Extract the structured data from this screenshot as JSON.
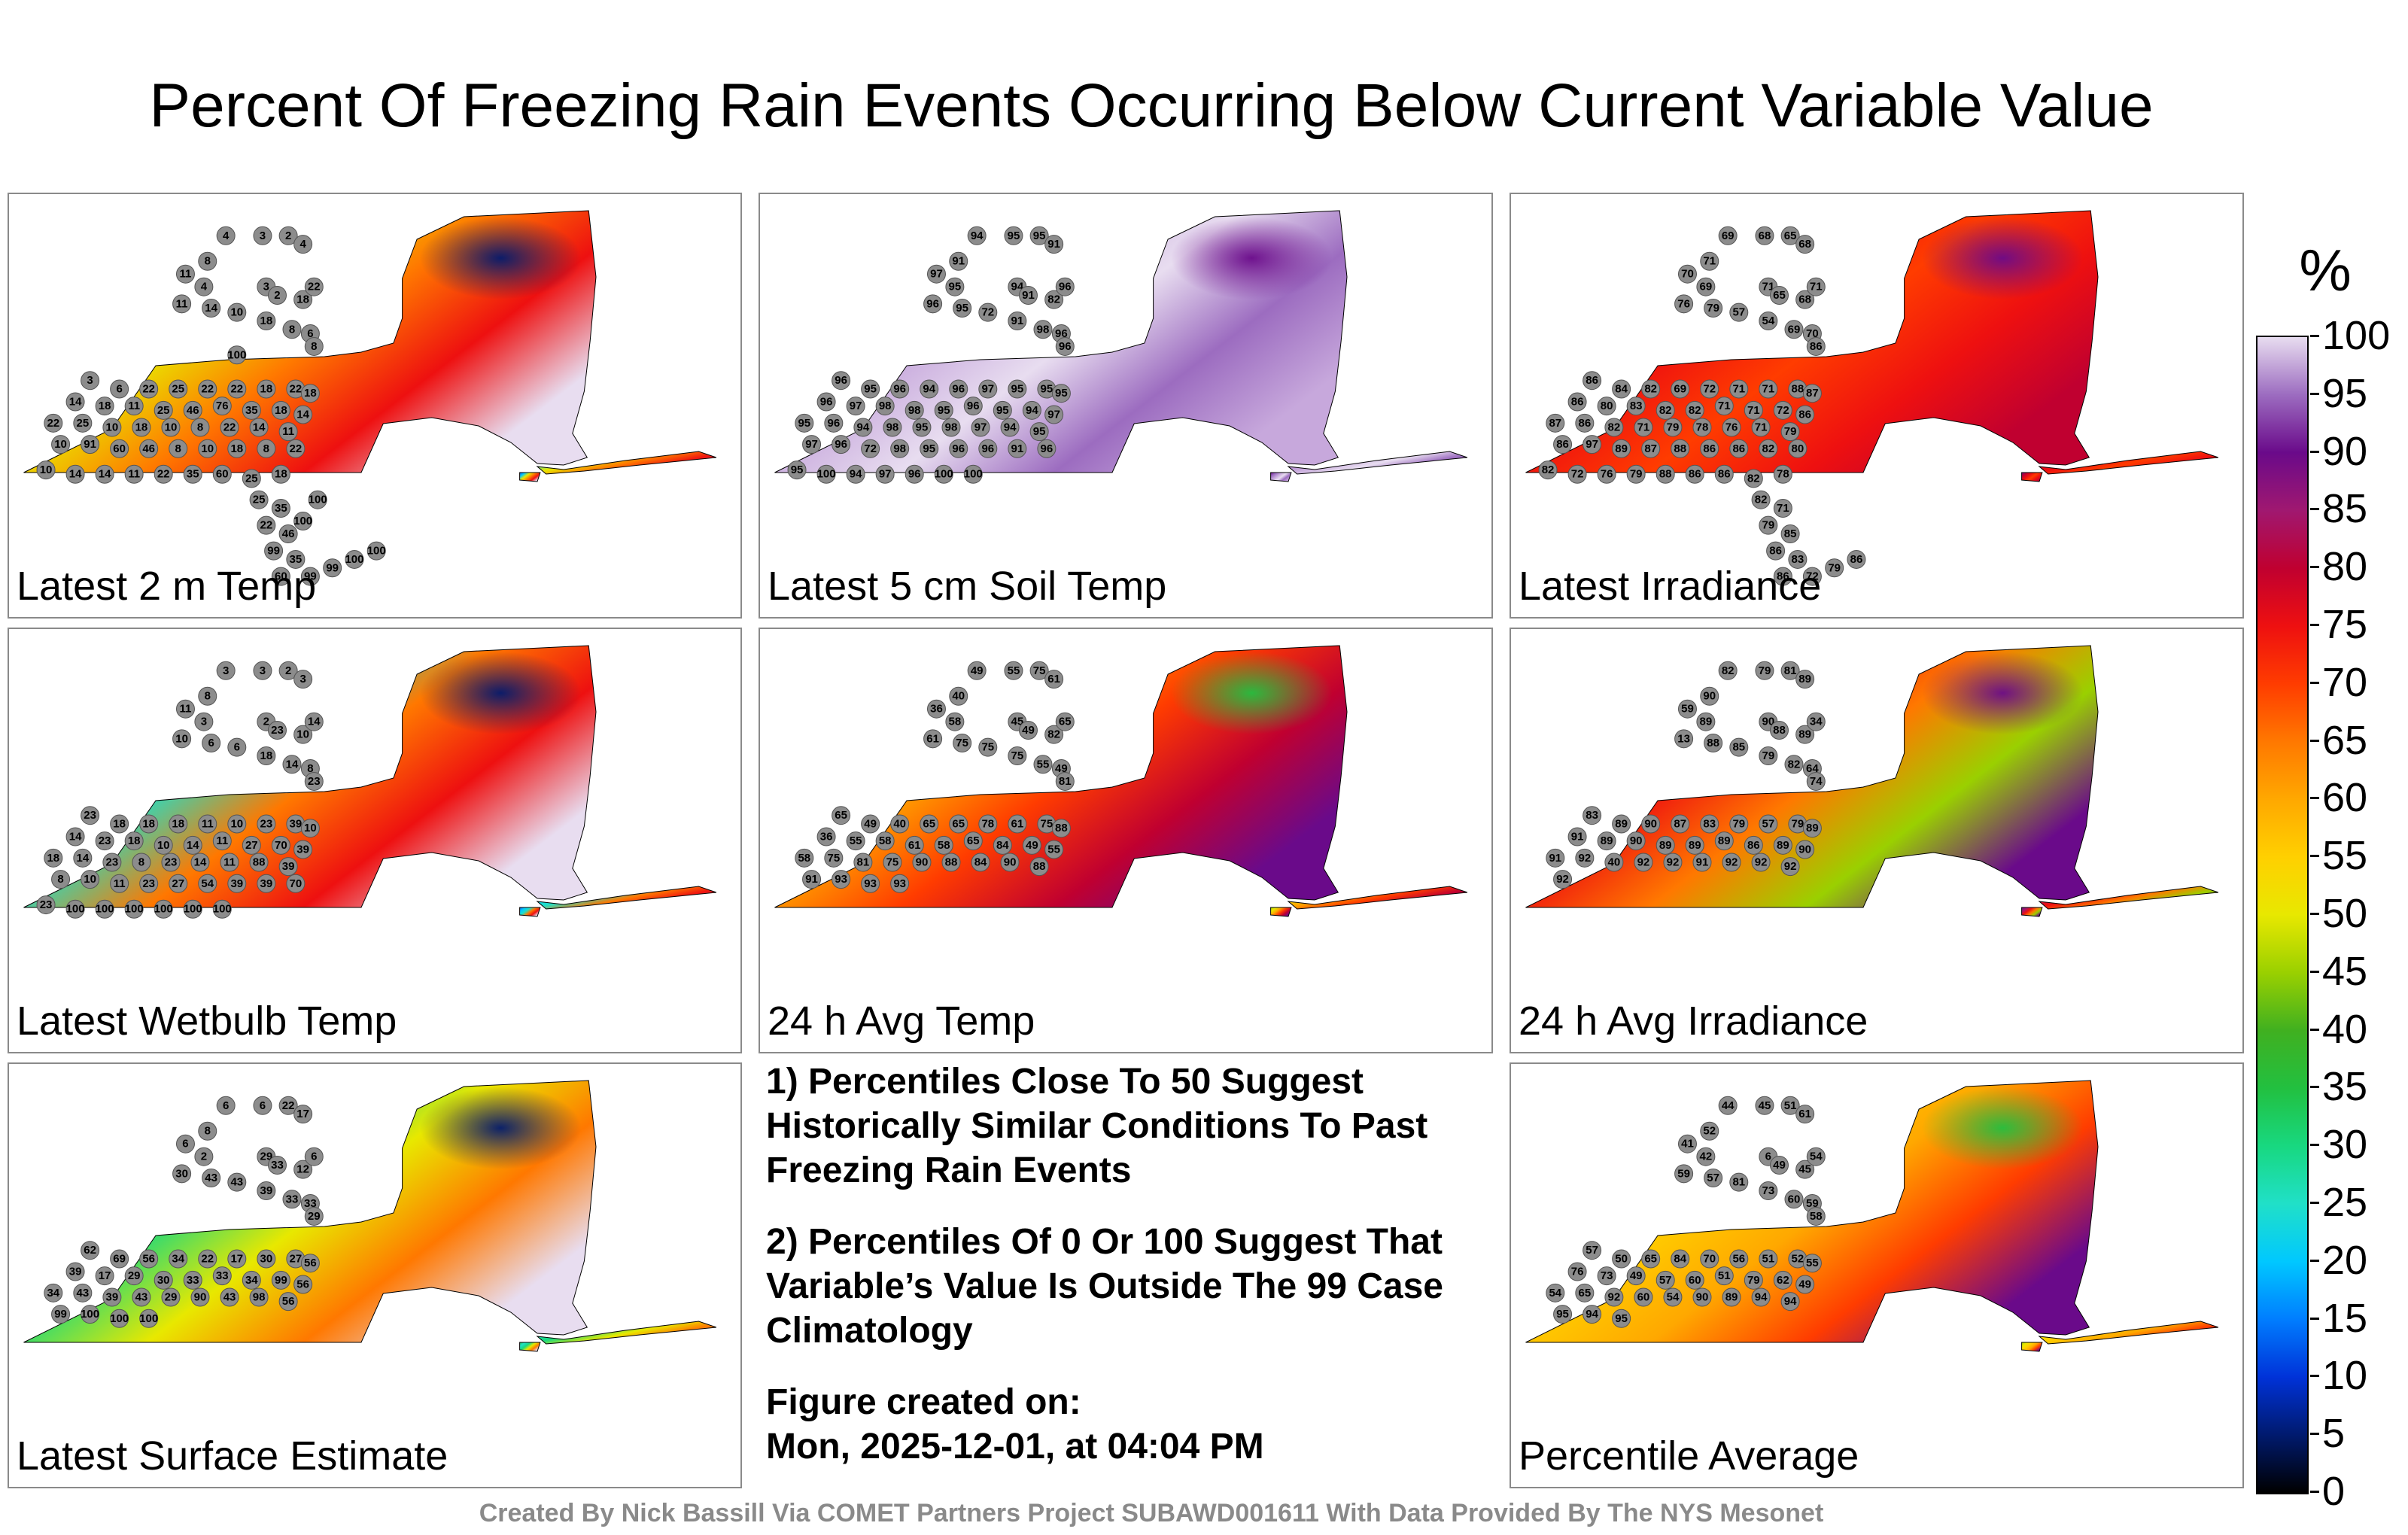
{
  "title": "Percent Of Freezing Rain Events Occurring Below Current Variable Value",
  "panels": [
    {
      "label": "Latest 2 m Temp",
      "colors": [
        "#1450e0",
        "#00c8ff",
        "#e8e800",
        "#ff7800",
        "#ee1010",
        "#e8ddf0"
      ],
      "dark": "#001a6e",
      "values": [
        "4",
        "3",
        "2",
        "4",
        "8",
        "11",
        "4",
        "3",
        "2",
        "18",
        "22",
        "11",
        "14",
        "10",
        "18",
        "8",
        "6",
        "8",
        "3",
        "6",
        "22",
        "25",
        "22",
        "22",
        "18",
        "22",
        "18",
        "14",
        "18",
        "11",
        "25",
        "46",
        "76",
        "35",
        "18",
        "14",
        "22",
        "25",
        "10",
        "18",
        "10",
        "8",
        "22",
        "14",
        "11",
        "10",
        "91",
        "60",
        "46",
        "8",
        "10",
        "18",
        "8",
        "22",
        "10",
        "14",
        "14",
        "11",
        "22",
        "35",
        "60",
        "25",
        "18",
        "25",
        "35",
        "22",
        "46",
        "99",
        "35",
        "60",
        "99",
        "99",
        "100",
        "100",
        "100",
        "100",
        "100"
      ]
    },
    {
      "label": "Latest 5 cm Soil Temp",
      "colors": [
        "#6a0a8a",
        "#9c6cc0",
        "#c7a8dc",
        "#e8ddf0",
        "#9c6cc0",
        "#c7a8dc"
      ],
      "dark": "#6a0a8a",
      "values": [
        "94",
        "95",
        "95",
        "91",
        "91",
        "97",
        "95",
        "94",
        "91",
        "82",
        "96",
        "96",
        "95",
        "72",
        "91",
        "98",
        "96",
        "96",
        "96",
        "95",
        "96",
        "94",
        "96",
        "97",
        "95",
        "95",
        "95",
        "96",
        "97",
        "98",
        "98",
        "95",
        "96",
        "95",
        "94",
        "97",
        "95",
        "96",
        "94",
        "98",
        "95",
        "98",
        "97",
        "94",
        "95",
        "97",
        "96",
        "72",
        "98",
        "95",
        "96",
        "96",
        "91",
        "96",
        "95",
        "100",
        "94",
        "97",
        "96",
        "100",
        "100"
      ]
    },
    {
      "label": "Latest Irradiance",
      "colors": [
        "#6a0a8a",
        "#c00030",
        "#ee1010",
        "#ff3c00",
        "#ee1010",
        "#c00030"
      ],
      "dark": "#6a0a8a",
      "values": [
        "69",
        "68",
        "65",
        "68",
        "71",
        "70",
        "69",
        "71",
        "65",
        "68",
        "71",
        "76",
        "79",
        "57",
        "54",
        "69",
        "70",
        "86",
        "86",
        "84",
        "82",
        "69",
        "72",
        "71",
        "71",
        "88",
        "87",
        "86",
        "80",
        "83",
        "82",
        "82",
        "71",
        "71",
        "72",
        "86",
        "87",
        "86",
        "82",
        "71",
        "79",
        "78",
        "76",
        "71",
        "79",
        "86",
        "97",
        "89",
        "87",
        "88",
        "86",
        "86",
        "82",
        "80",
        "82",
        "72",
        "76",
        "79",
        "88",
        "86",
        "86",
        "82",
        "78",
        "82",
        "71",
        "79",
        "85",
        "86",
        "83",
        "86",
        "72",
        "79",
        "86"
      ]
    },
    {
      "label": "Latest Wetbulb Temp",
      "colors": [
        "#1450e0",
        "#00c8ff",
        "#20e0c8",
        "#ff7800",
        "#ee1010",
        "#e8ddf0"
      ],
      "dark": "#001a6e",
      "values": [
        "3",
        "3",
        "2",
        "3",
        "8",
        "11",
        "3",
        "2",
        "23",
        "10",
        "14",
        "10",
        "6",
        "6",
        "18",
        "14",
        "8",
        "23",
        "23",
        "18",
        "18",
        "18",
        "11",
        "10",
        "23",
        "39",
        "10",
        "14",
        "23",
        "18",
        "10",
        "14",
        "11",
        "27",
        "70",
        "39",
        "18",
        "14",
        "23",
        "8",
        "23",
        "14",
        "11",
        "88",
        "39",
        "8",
        "10",
        "11",
        "23",
        "27",
        "54",
        "39",
        "39",
        "70",
        "23",
        "100",
        "100",
        "100",
        "100",
        "100",
        "100"
      ]
    },
    {
      "label": "24 h Avg Temp",
      "colors": [
        "#9ad000",
        "#e8e800",
        "#ffa800",
        "#ff3c00",
        "#c00030",
        "#6a0a8a"
      ],
      "dark": "#22c040",
      "values": [
        "49",
        "55",
        "75",
        "61",
        "40",
        "36",
        "58",
        "45",
        "49",
        "82",
        "65",
        "61",
        "75",
        "75",
        "75",
        "55",
        "49",
        "81",
        "65",
        "49",
        "40",
        "65",
        "65",
        "78",
        "61",
        "75",
        "88",
        "36",
        "55",
        "58",
        "61",
        "58",
        "65",
        "84",
        "49",
        "55",
        "58",
        "75",
        "81",
        "75",
        "90",
        "88",
        "84",
        "90",
        "88",
        "91",
        "93",
        "93",
        "93"
      ]
    },
    {
      "label": "24 h Avg Irradiance",
      "colors": [
        "#6a0a8a",
        "#a01870",
        "#ee1010",
        "#ff7800",
        "#9ad000",
        "#6a0a8a"
      ],
      "dark": "#6a0a8a",
      "values": [
        "82",
        "79",
        "81",
        "89",
        "90",
        "59",
        "89",
        "90",
        "88",
        "89",
        "34",
        "13",
        "88",
        "85",
        "79",
        "82",
        "64",
        "74",
        "83",
        "89",
        "90",
        "87",
        "83",
        "79",
        "57",
        "79",
        "89",
        "91",
        "89",
        "90",
        "89",
        "89",
        "89",
        "86",
        "89",
        "90",
        "91",
        "92",
        "40",
        "92",
        "92",
        "91",
        "92",
        "92",
        "92",
        "92"
      ]
    },
    {
      "label": "Latest Surface Estimate",
      "colors": [
        "#22c040",
        "#20e0c8",
        "#18d880",
        "#e8e800",
        "#ff7800",
        "#e8ddf0"
      ],
      "dark": "#001a6e",
      "values": [
        "6",
        "6",
        "22",
        "17",
        "8",
        "6",
        "2",
        "29",
        "33",
        "12",
        "6",
        "30",
        "43",
        "43",
        "39",
        "33",
        "33",
        "29",
        "62",
        "69",
        "56",
        "34",
        "22",
        "17",
        "30",
        "27",
        "56",
        "39",
        "17",
        "29",
        "30",
        "33",
        "33",
        "34",
        "99",
        "56",
        "34",
        "43",
        "39",
        "43",
        "29",
        "90",
        "43",
        "98",
        "56",
        "99",
        "100",
        "100",
        "100"
      ]
    },
    {
      "label": "Percentile Average",
      "colors": [
        "#9ad000",
        "#e8e800",
        "#ffd000",
        "#ffa800",
        "#ff3c00",
        "#6a0a8a"
      ],
      "dark": "#22c040",
      "values": [
        "44",
        "45",
        "51",
        "61",
        "52",
        "41",
        "42",
        "6",
        "49",
        "45",
        "54",
        "59",
        "57",
        "81",
        "73",
        "60",
        "59",
        "58",
        "57",
        "50",
        "65",
        "84",
        "70",
        "56",
        "51",
        "52",
        "55",
        "76",
        "73",
        "49",
        "57",
        "60",
        "51",
        "79",
        "62",
        "49",
        "54",
        "65",
        "92",
        "60",
        "54",
        "90",
        "89",
        "94",
        "94",
        "95",
        "94",
        "95"
      ]
    }
  ],
  "notes": [
    "1) Percentiles Close To 50 Suggest Historically Similar Conditions To Past Freezing Rain Events",
    "2) Percentiles Of 0 Or 100 Suggest That Variable’s Value Is Outside The 99 Case Climatology",
    "Figure created on:"
  ],
  "created_on": "Mon, 2025-12-01, at 04:04 PM",
  "colorbar": {
    "unit": "%",
    "ticks": [
      "0",
      "5",
      "10",
      "15",
      "20",
      "25",
      "30",
      "35",
      "40",
      "45",
      "50",
      "55",
      "60",
      "65",
      "70",
      "75",
      "80",
      "85",
      "90",
      "95",
      "100"
    ]
  },
  "footer": "Created By Nick Bassill Via COMET Partners Project SUBAWD001611 With Data Provided By The NYS Mesonet"
}
